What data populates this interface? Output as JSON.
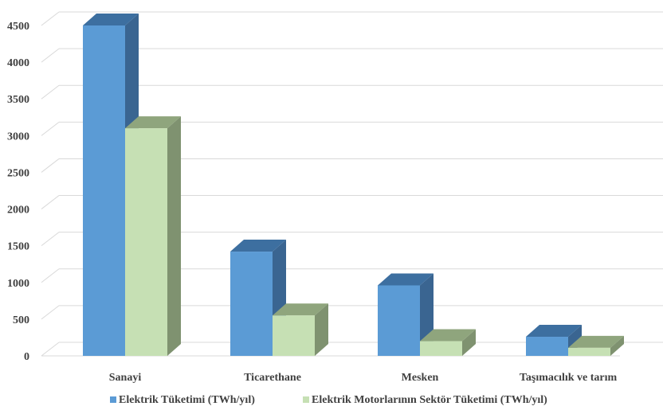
{
  "chart_data": {
    "type": "bar",
    "style": "3d-clustered-column",
    "categories": [
      "Sanayi",
      "Ticarethane",
      "Mesken",
      "Taşımacılık ve tarım"
    ],
    "series": [
      {
        "name": "Elektrik Tüketimi (TWh/yıl)",
        "values": [
          4500,
          1420,
          960,
          260
        ],
        "color_front": "#5b9bd5",
        "color_top": "#3d6fa0",
        "color_side": "#3a6591"
      },
      {
        "name": "Elektrik Motorlarının Sektör Tüketimi (TWh/yıl)",
        "values": [
          3100,
          550,
          200,
          110
        ],
        "color_front": "#c6e0b4",
        "color_top": "#8fa57d",
        "color_side": "#7f9270"
      }
    ],
    "yticks": [
      0,
      500,
      1000,
      1500,
      2000,
      2500,
      3000,
      3500,
      4000,
      4500
    ],
    "ylim": [
      0,
      5000
    ],
    "grid": true,
    "legend_position": "bottom",
    "gridline_color": "#d9d9d9"
  }
}
